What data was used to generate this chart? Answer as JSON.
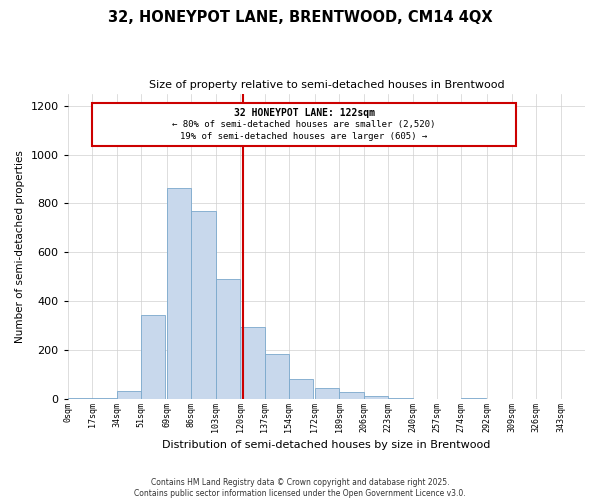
{
  "title": "32, HONEYPOT LANE, BRENTWOOD, CM14 4QX",
  "subtitle": "Size of property relative to semi-detached houses in Brentwood",
  "xlabel": "Distribution of semi-detached houses by size in Brentwood",
  "ylabel": "Number of semi-detached properties",
  "bin_labels": [
    "0sqm",
    "17sqm",
    "34sqm",
    "51sqm",
    "69sqm",
    "86sqm",
    "103sqm",
    "120sqm",
    "137sqm",
    "154sqm",
    "172sqm",
    "189sqm",
    "206sqm",
    "223sqm",
    "240sqm",
    "257sqm",
    "274sqm",
    "292sqm",
    "309sqm",
    "326sqm",
    "343sqm"
  ],
  "bin_edges": [
    0,
    17,
    34,
    51,
    69,
    86,
    103,
    120,
    137,
    154,
    172,
    189,
    206,
    223,
    240,
    257,
    274,
    292,
    309,
    326,
    343
  ],
  "bar_heights": [
    5,
    5,
    33,
    345,
    865,
    770,
    490,
    295,
    185,
    80,
    46,
    30,
    12,
    4,
    0,
    0,
    5,
    0,
    0,
    0
  ],
  "bar_color": "#c8d8ec",
  "bar_edge_color": "#7aa8cc",
  "property_value": 122,
  "vline_color": "#cc0000",
  "annotation_title": "32 HONEYPOT LANE: 122sqm",
  "annotation_line1": "← 80% of semi-detached houses are smaller (2,520)",
  "annotation_line2": "19% of semi-detached houses are larger (605) →",
  "annotation_box_color": "#ffffff",
  "annotation_box_edge": "#cc0000",
  "ylim": [
    0,
    1250
  ],
  "yticks": [
    0,
    200,
    400,
    600,
    800,
    1000,
    1200
  ],
  "background_color": "#ffffff",
  "axes_background": "#ffffff",
  "footnote1": "Contains HM Land Registry data © Crown copyright and database right 2025.",
  "footnote2": "Contains public sector information licensed under the Open Government Licence v3.0."
}
